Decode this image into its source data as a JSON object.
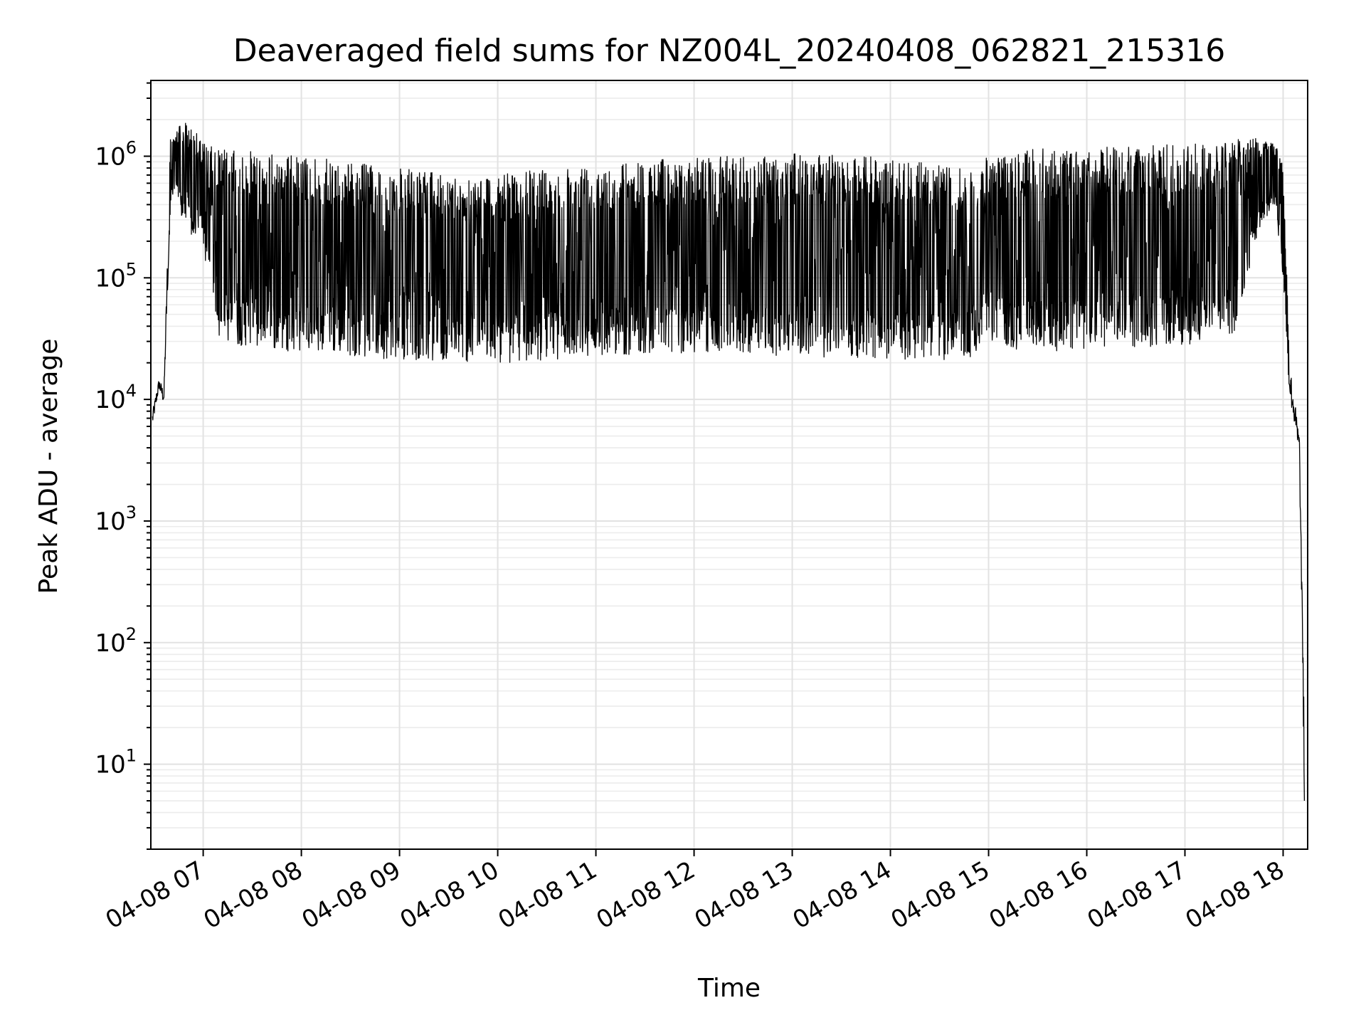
{
  "chart_data": {
    "type": "line",
    "title": "Deaveraged field sums for NZ004L_20240408_062821_215316",
    "xlabel": "Time",
    "ylabel": "Peak ADU - average",
    "y_scale": "log",
    "ylim": [
      2,
      4200000
    ],
    "xlim": [
      "2024-04-08 06:28",
      "2024-04-08 18:15"
    ],
    "x_ticks": [
      "04-08 07",
      "04-08 08",
      "04-08 09",
      "04-08 10",
      "04-08 11",
      "04-08 12",
      "04-08 13",
      "04-08 14",
      "04-08 15",
      "04-08 16",
      "04-08 17",
      "04-08 18"
    ],
    "y_ticks": [
      {
        "value": 10,
        "base": "10",
        "exp": "1"
      },
      {
        "value": 100,
        "base": "10",
        "exp": "2"
      },
      {
        "value": 1000,
        "base": "10",
        "exp": "3"
      },
      {
        "value": 10000,
        "base": "10",
        "exp": "4"
      },
      {
        "value": 100000,
        "base": "10",
        "exp": "5"
      },
      {
        "value": 1000000,
        "base": "10",
        "exp": "6"
      }
    ],
    "grid": true,
    "series": [
      {
        "color": "#000000",
        "x": [
          "2024-04-08 06:29",
          "2024-04-08 06:33",
          "2024-04-08 06:36",
          "2024-04-08 06:40",
          "2024-04-08 06:43",
          "2024-04-08 06:47",
          "2024-04-08 06:50",
          "2024-04-08 06:54",
          "2024-04-08 06:57",
          "2024-04-08 07:00",
          "2024-04-08 07:05",
          "2024-04-08 07:10",
          "2024-04-08 07:15",
          "2024-04-08 07:20",
          "2024-04-08 07:30",
          "2024-04-08 07:40",
          "2024-04-08 07:50",
          "2024-04-08 08:00",
          "2024-04-08 08:15",
          "2024-04-08 08:30",
          "2024-04-08 08:45",
          "2024-04-08 09:00",
          "2024-04-08 09:15",
          "2024-04-08 09:30",
          "2024-04-08 09:45",
          "2024-04-08 10:00",
          "2024-04-08 10:15",
          "2024-04-08 10:30",
          "2024-04-08 10:45",
          "2024-04-08 11:00",
          "2024-04-08 11:15",
          "2024-04-08 11:30",
          "2024-04-08 11:45",
          "2024-04-08 12:00",
          "2024-04-08 12:15",
          "2024-04-08 12:30",
          "2024-04-08 12:45",
          "2024-04-08 13:00",
          "2024-04-08 13:15",
          "2024-04-08 13:30",
          "2024-04-08 13:45",
          "2024-04-08 14:00",
          "2024-04-08 14:15",
          "2024-04-08 14:30",
          "2024-04-08 14:45",
          "2024-04-08 14:55",
          "2024-04-08 15:00",
          "2024-04-08 15:15",
          "2024-04-08 15:30",
          "2024-04-08 15:45",
          "2024-04-08 16:00",
          "2024-04-08 16:15",
          "2024-04-08 16:30",
          "2024-04-08 16:45",
          "2024-04-08 17:00",
          "2024-04-08 17:15",
          "2024-04-08 17:30",
          "2024-04-08 17:45",
          "2024-04-08 17:55",
          "2024-04-08 18:00",
          "2024-04-08 18:04",
          "2024-04-08 18:07",
          "2024-04-08 18:10",
          "2024-04-08 18:13"
        ],
        "low": [
          6000,
          12000,
          9000,
          400000,
          500000,
          300000,
          250000,
          200000,
          250000,
          150000,
          90000,
          30000,
          30000,
          28000,
          27000,
          26000,
          25000,
          25000,
          24000,
          23000,
          22000,
          21000,
          21000,
          21000,
          20000,
          20000,
          20000,
          21000,
          22000,
          23000,
          23000,
          24000,
          24000,
          24000,
          24000,
          24000,
          23000,
          23000,
          22000,
          22000,
          22000,
          21000,
          21000,
          21000,
          22000,
          23000,
          30000,
          25000,
          25000,
          25000,
          26000,
          26000,
          27000,
          27000,
          28000,
          30000,
          35000,
          250000,
          400000,
          100000,
          10000,
          6000,
          3000,
          5
        ],
        "high": [
          8000,
          15000,
          12000,
          1500000,
          1700000,
          1800000,
          1900000,
          1700000,
          1500000,
          1300000,
          1200000,
          1200000,
          1150000,
          1100000,
          1100000,
          1050000,
          1050000,
          1000000,
          950000,
          900000,
          850000,
          800000,
          750000,
          700000,
          700000,
          700000,
          750000,
          800000,
          850000,
          900000,
          900000,
          950000,
          950000,
          1000000,
          1000000,
          1000000,
          1050000,
          1050000,
          1050000,
          1000000,
          1000000,
          950000,
          900000,
          850000,
          800000,
          700000,
          1100000,
          1100000,
          1150000,
          1150000,
          1150000,
          1200000,
          1200000,
          1250000,
          1300000,
          1300000,
          1400000,
          1500000,
          1300000,
          900000,
          20000,
          10000,
          5000,
          20
        ]
      }
    ]
  }
}
